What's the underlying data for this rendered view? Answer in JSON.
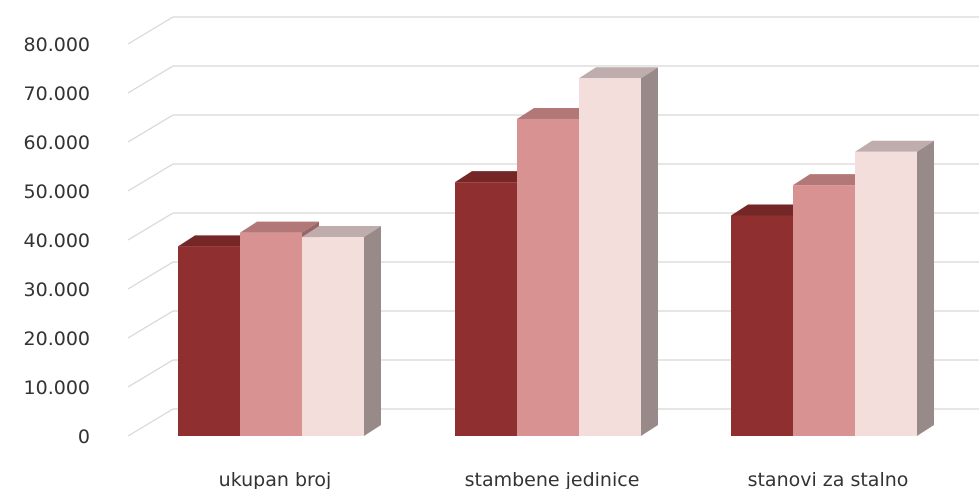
{
  "chart_data": {
    "type": "bar",
    "categories": [
      "ukupan broj",
      "stambene jedinice",
      "stanovi za stalno"
    ],
    "series": [
      {
        "values": [
          38700,
          51800,
          45000
        ],
        "color": "#8f2f2f"
      },
      {
        "values": [
          41500,
          64700,
          51200
        ],
        "color": "#d99292"
      },
      {
        "values": [
          40600,
          73000,
          58000
        ],
        "color": "#f3dedc"
      }
    ],
    "y_ticks": [
      "0",
      "10.000",
      "20.000",
      "30.000",
      "40.000",
      "50.000",
      "60.000",
      "70.000",
      "80.000"
    ],
    "ylim": [
      0,
      80000
    ],
    "grid": true,
    "style": "3d-column"
  }
}
